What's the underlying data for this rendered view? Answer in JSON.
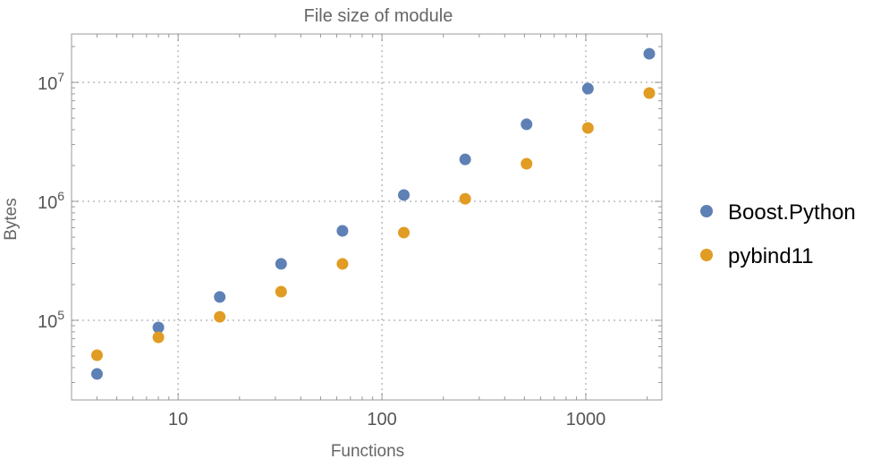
{
  "chart_data": {
    "type": "scatter",
    "title": "File size of module",
    "xlabel": "Functions",
    "ylabel": "Bytes",
    "xscale": "log",
    "yscale": "log",
    "xlim": [
      3.0,
      2360
    ],
    "ylim": [
      21400,
      25500000
    ],
    "grid": true,
    "legend_position": "right",
    "x_ticks": [
      {
        "value": 10,
        "label": "10"
      },
      {
        "value": 100,
        "label": "100"
      },
      {
        "value": 1000,
        "label": "1000"
      }
    ],
    "y_ticks": [
      {
        "value": 100000,
        "base": "10",
        "exp": "5"
      },
      {
        "value": 1000000,
        "base": "10",
        "exp": "6"
      },
      {
        "value": 10000000,
        "base": "10",
        "exp": "7"
      }
    ],
    "x": [
      4,
      8,
      16,
      32,
      64,
      128,
      256,
      512,
      1024,
      2048
    ],
    "series": [
      {
        "name": "Boost.Python",
        "color": "#5E81B5",
        "values": [
          35400,
          87000,
          157000,
          298000,
          565000,
          1130000,
          2250000,
          4440000,
          8860000,
          17400000
        ]
      },
      {
        "name": "pybind11",
        "color": "#E19C24",
        "values": [
          50900,
          71900,
          107000,
          174000,
          298000,
          546000,
          1050000,
          2070000,
          4140000,
          8130000
        ]
      }
    ]
  }
}
